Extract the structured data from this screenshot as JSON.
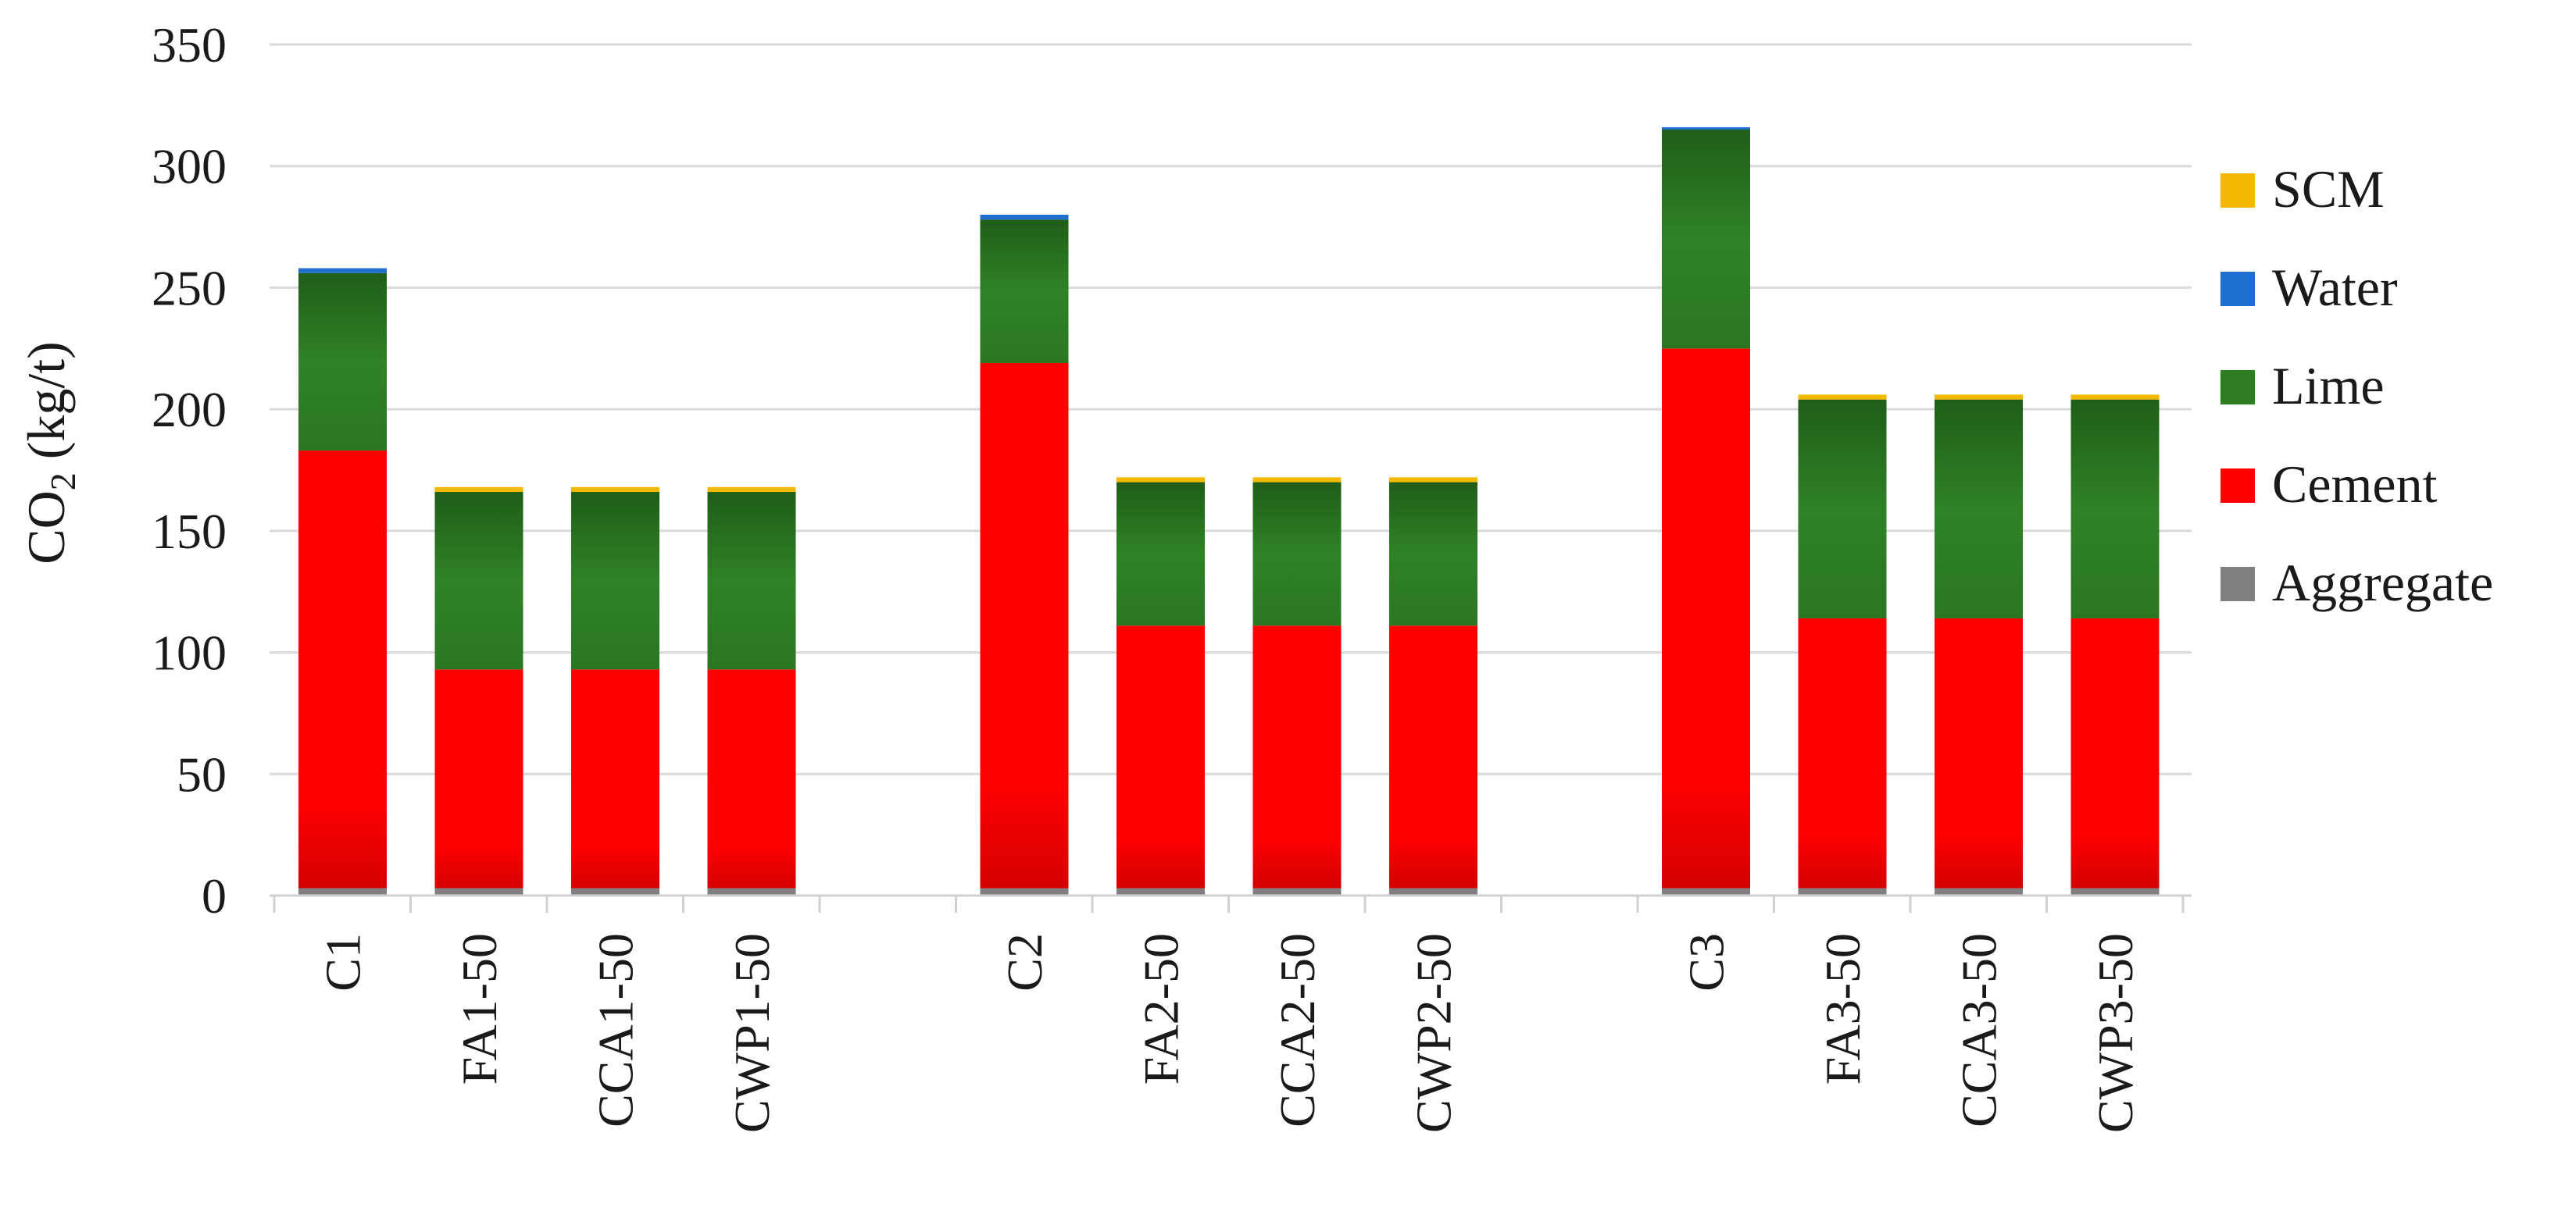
{
  "chart_data": {
    "type": "bar",
    "stacked": true,
    "ylabel_main": "CO",
    "ylabel_sub": "2",
    "ylabel_unit": " (kg/t)",
    "ylim": [
      0,
      350
    ],
    "yticks": [
      0,
      50,
      100,
      150,
      200,
      250,
      300,
      350
    ],
    "grid": true,
    "legend_position": "right",
    "groups": [
      [
        "C1",
        "FA1-50",
        "CCA1-50",
        "CWP1-50"
      ],
      [
        "C2",
        "FA2-50",
        "CCA2-50",
        "CWP2-50"
      ],
      [
        "C3",
        "FA3-50",
        "CCA3-50",
        "CWP3-50"
      ]
    ],
    "categories": [
      "C1",
      "FA1-50",
      "CCA1-50",
      "CWP1-50",
      "C2",
      "FA2-50",
      "CCA2-50",
      "CWP2-50",
      "C3",
      "FA3-50",
      "CCA3-50",
      "CWP3-50"
    ],
    "series": [
      {
        "name": "Aggregate",
        "color": "#808080",
        "values": [
          3,
          3,
          3,
          3,
          3,
          3,
          3,
          3,
          3,
          3,
          3,
          3
        ]
      },
      {
        "name": "Cement",
        "color": "#ff0000",
        "values": [
          180,
          90,
          90,
          90,
          216,
          108,
          108,
          108,
          222,
          111,
          111,
          111
        ]
      },
      {
        "name": "Lime",
        "color": "#2e7d23",
        "values": [
          73,
          73,
          73,
          73,
          59,
          59,
          59,
          59,
          90,
          90,
          90,
          90
        ]
      },
      {
        "name": "Water",
        "color": "#1f6fd1",
        "values": [
          2,
          0,
          0,
          0,
          2,
          0,
          0,
          0,
          1,
          0,
          0,
          0
        ]
      },
      {
        "name": "SCM",
        "color": "#f5b800",
        "values": [
          0,
          2,
          2,
          2,
          0,
          2,
          2,
          2,
          0,
          2,
          2,
          2
        ]
      }
    ],
    "legend_order": [
      "SCM",
      "Water",
      "Lime",
      "Cement",
      "Aggregate"
    ]
  }
}
